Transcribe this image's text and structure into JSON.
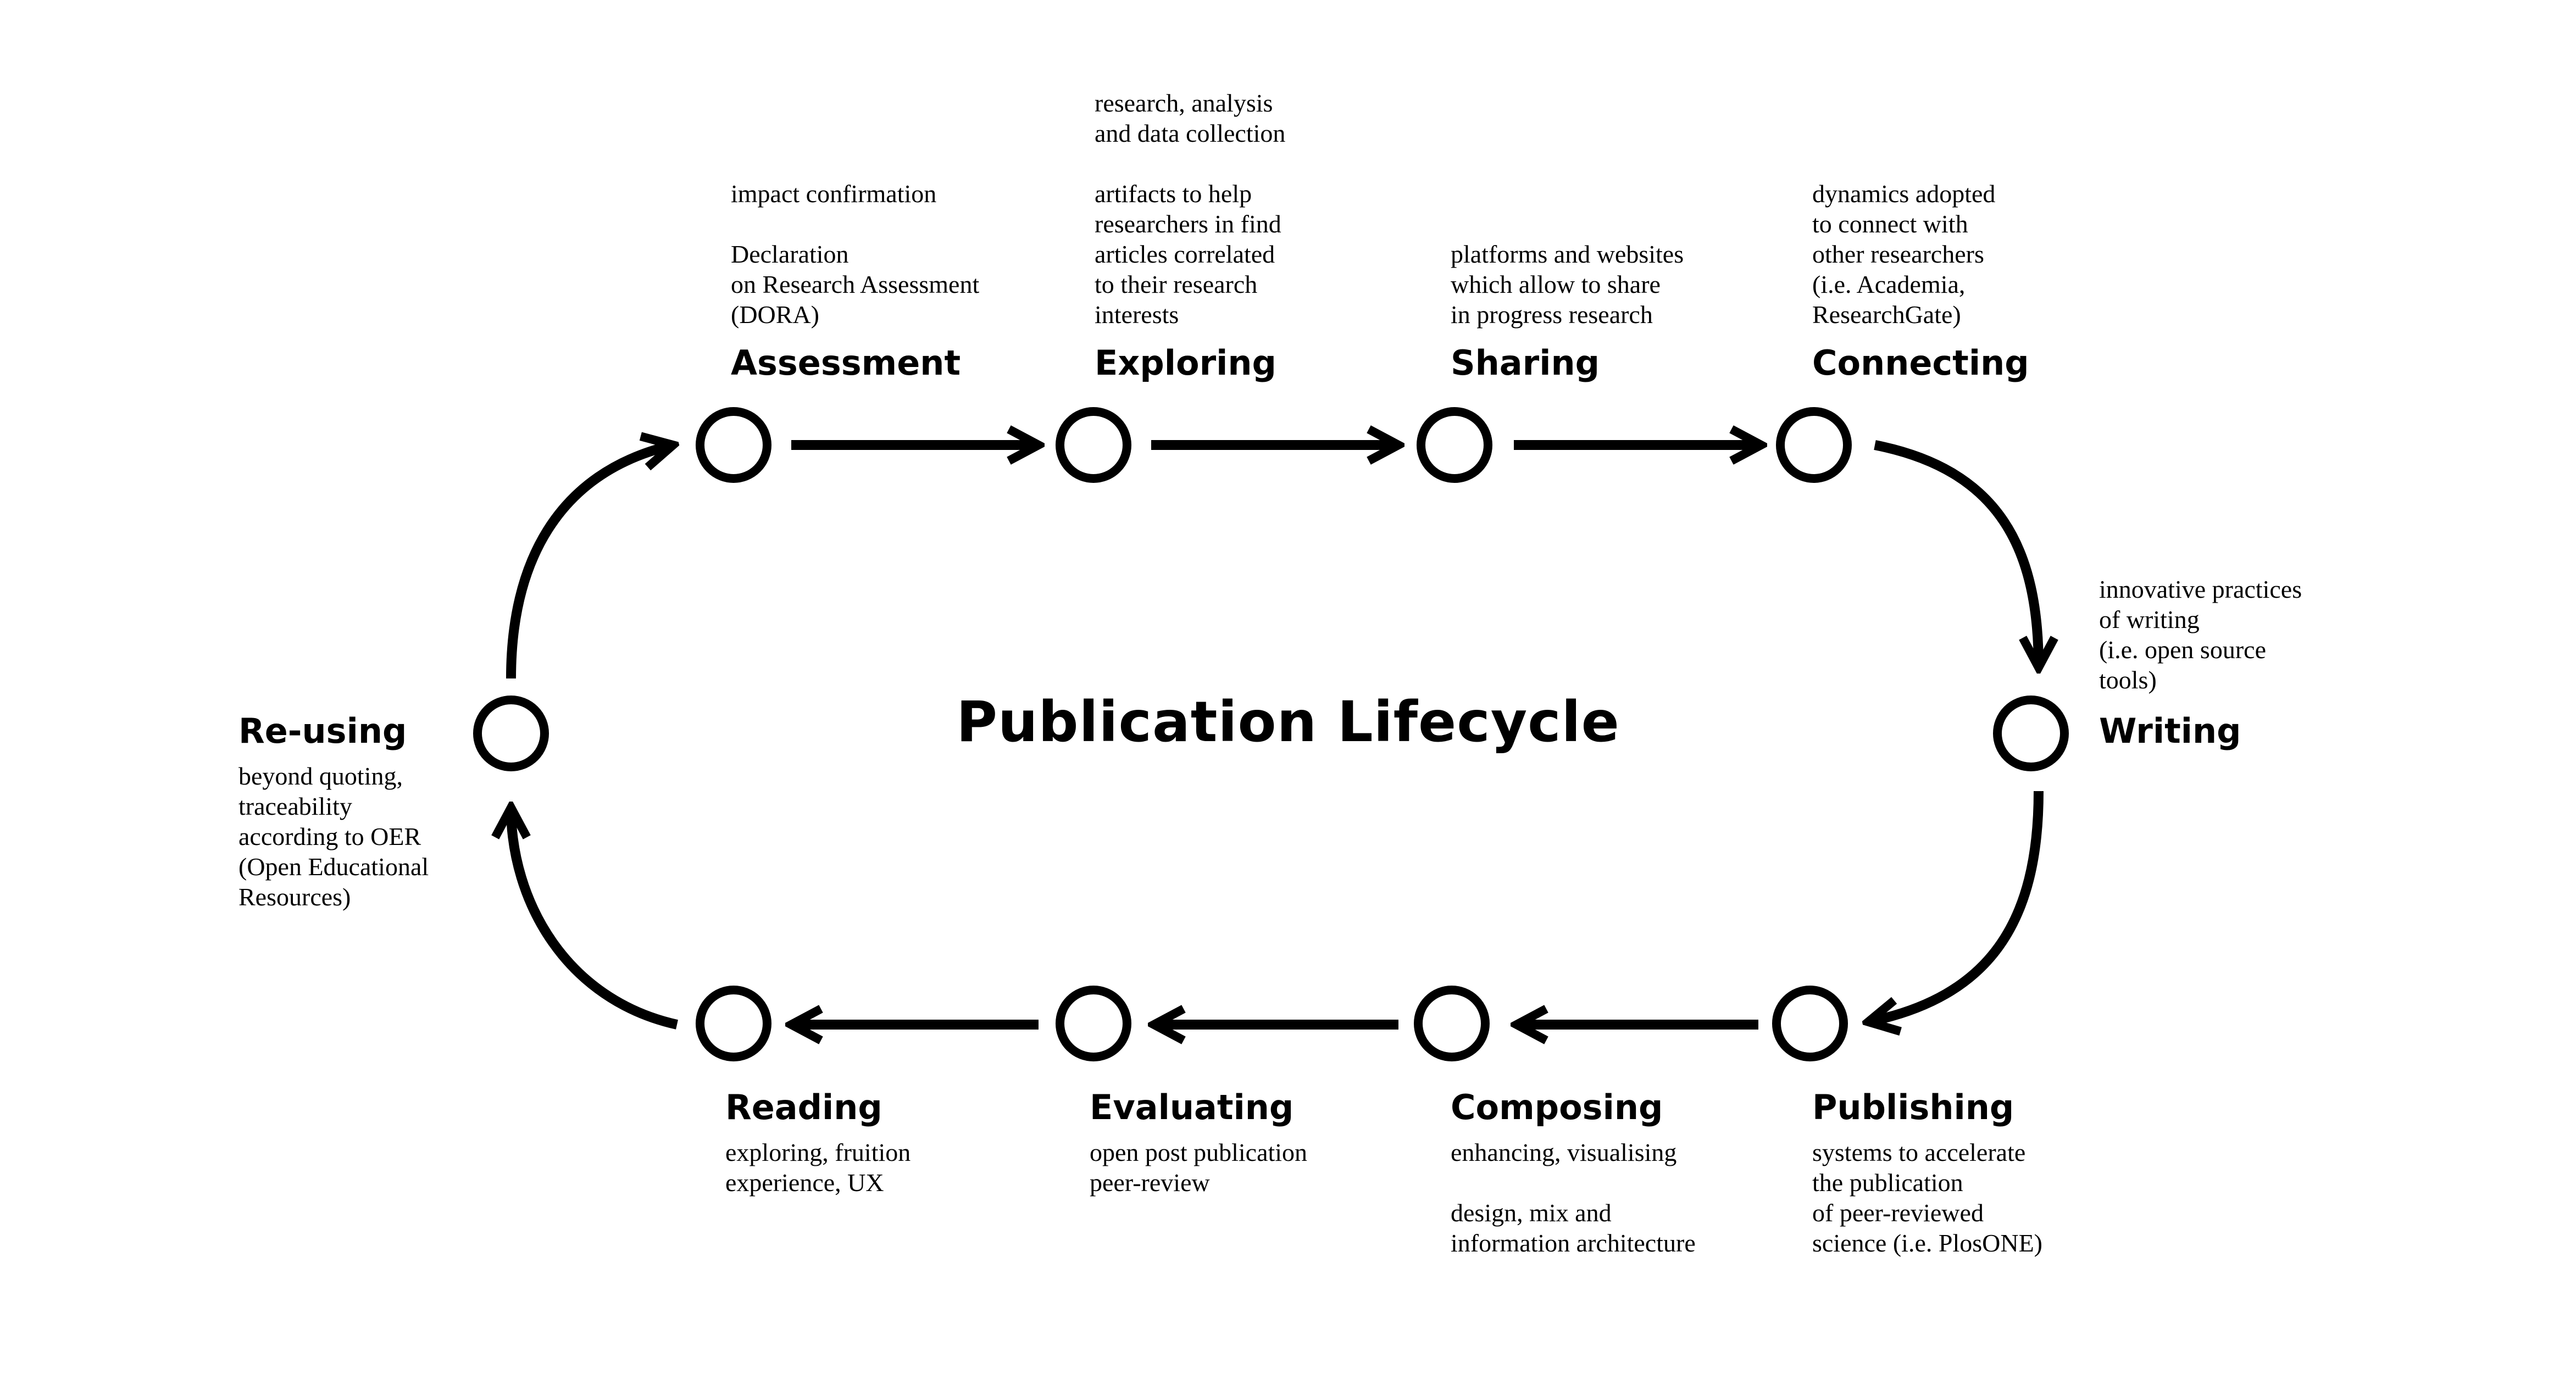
{
  "title": "Publication Lifecycle",
  "stages": [
    {
      "id": "assessment",
      "label": "Assessment",
      "description": "impact confirmation\n\nDeclaration\non Research Assessment\n(DORA)"
    },
    {
      "id": "exploring",
      "label": "Exploring",
      "description": "research, analysis\nand data collection\n\nartifacts to help\nresearchers in find\narticles correlated\nto their research\ninterests"
    },
    {
      "id": "sharing",
      "label": "Sharing",
      "description": "platforms and websites\nwhich allow to share\nin progress research"
    },
    {
      "id": "connecting",
      "label": "Connecting",
      "description": "dynamics adopted\nto connect with\nother researchers\n(i.e. Academia,\nResearchGate)"
    },
    {
      "id": "writing",
      "label": "Writing",
      "description": "innovative practices\nof writing\n(i.e. open source\ntools)"
    },
    {
      "id": "publishing",
      "label": "Publishing",
      "description": "systems to accelerate\nthe publication\nof peer-reviewed\nscience (i.e. PlosONE)"
    },
    {
      "id": "composing",
      "label": "Composing",
      "description": "enhancing, visualising\n\ndesign, mix and\ninformation architecture"
    },
    {
      "id": "evaluating",
      "label": "Evaluating",
      "description": "open post publication\npeer-review"
    },
    {
      "id": "reading",
      "label": "Reading",
      "description": "exploring, fruition\nexperience, UX"
    },
    {
      "id": "reusing",
      "label": "Re-using",
      "description": "beyond quoting,\ntraceability\naccording to OER\n(Open Educational\nResources)"
    }
  ]
}
